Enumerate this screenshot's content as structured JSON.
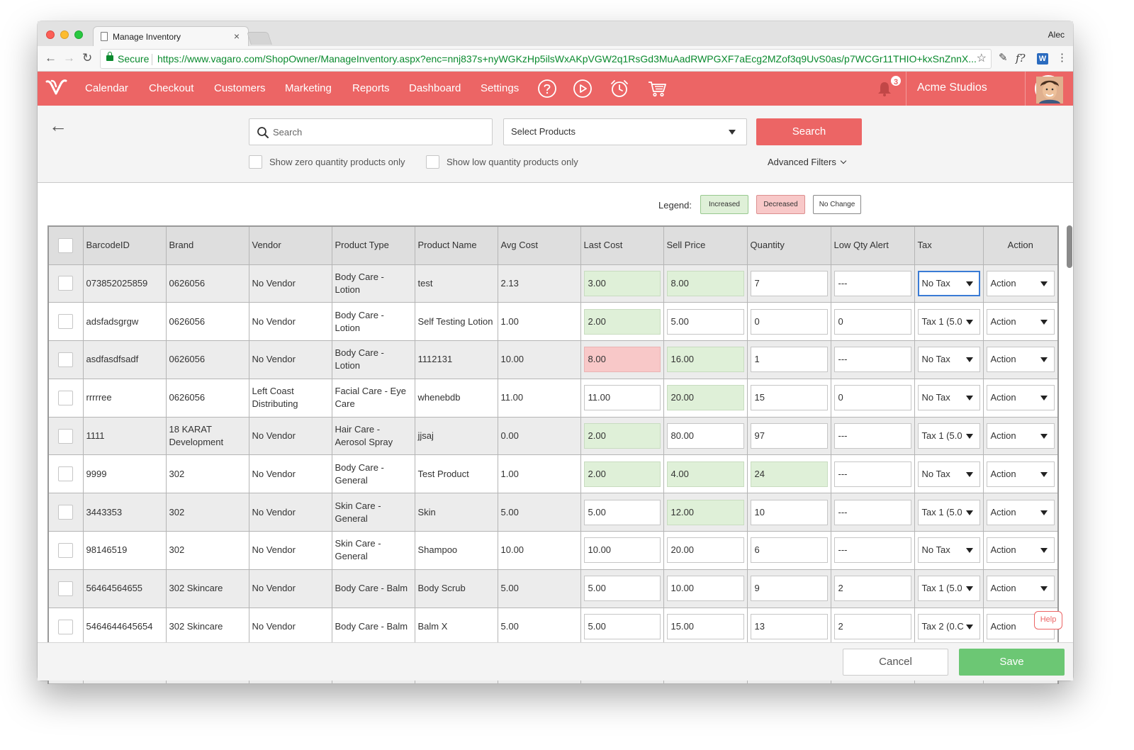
{
  "browser": {
    "tab_title": "Manage Inventory",
    "tab_close": "×",
    "user_name": "Alec",
    "secure_label": "Secure",
    "url": "https://www.vagaro.com/ShopOwner/ManageInventory.aspx?enc=nnj837s+nyWGKzHp5ilsWxAKpVGW2q1RsGd3MuAadRWPGXF7aEcg2MZof3q9UvS0as/p7WCGr11THIO+kxSnZnnX...",
    "ext_f": "f?",
    "ext_w": "W"
  },
  "nav": {
    "items": [
      "Calendar",
      "Checkout",
      "Customers",
      "Marketing",
      "Reports",
      "Dashboard",
      "Settings"
    ],
    "notification_count": "3",
    "business_name": "Acme Studios",
    "icons": [
      "help-icon",
      "play-icon",
      "alarm-clock-icon",
      "cart-icon",
      "bell-icon"
    ]
  },
  "filters": {
    "search_placeholder": "Search",
    "select_products": "Select Products",
    "search_button": "Search",
    "zero_qty_label": "Show zero quantity products only",
    "low_qty_label": "Show low quantity products only",
    "advanced_filters": "Advanced Filters"
  },
  "legend": {
    "label": "Legend:",
    "increased": "Increased",
    "decreased": "Decreased",
    "no_change": "No Change",
    "colors": {
      "increased": "#dff0d8",
      "decreased": "#f8c8c8",
      "no_change": "#ffffff"
    }
  },
  "table": {
    "headers": [
      "BarcodeID",
      "Brand",
      "Vendor",
      "Product Type",
      "Product Name",
      "Avg Cost",
      "Last Cost",
      "Sell Price",
      "Quantity",
      "Low Qty Alert",
      "Tax",
      "Action"
    ],
    "rows": [
      {
        "barcode": "073852025859",
        "brand": "0626056",
        "vendor": "No Vendor",
        "type": "Body Care - Lotion",
        "name": "test",
        "avg": "2.13",
        "last": "3.00",
        "last_s": "inc",
        "sell": "8.00",
        "sell_s": "inc",
        "qty": "7",
        "qty_s": "",
        "low": "---",
        "tax": "No Tax",
        "action": "Action"
      },
      {
        "barcode": "adsfadsgrgw",
        "brand": "0626056",
        "vendor": "No Vendor",
        "type": "Body Care - Lotion",
        "name": "Self Testing Lotion",
        "avg": "1.00",
        "last": "2.00",
        "last_s": "inc",
        "sell": "5.00",
        "sell_s": "",
        "qty": "0",
        "qty_s": "",
        "low": "0",
        "tax": "Tax 1 (5.0",
        "action": "Action"
      },
      {
        "barcode": "asdfasdfsadf",
        "brand": "0626056",
        "vendor": "No Vendor",
        "type": "Body Care - Lotion",
        "name": "1112131",
        "avg": "10.00",
        "last": "8.00",
        "last_s": "dec",
        "sell": "16.00",
        "sell_s": "inc",
        "qty": "1",
        "qty_s": "",
        "low": "---",
        "tax": "No Tax",
        "action": "Action"
      },
      {
        "barcode": "rrrrree",
        "brand": "0626056",
        "vendor": "Left Coast Distributing",
        "type": "Facial Care - Eye Care",
        "name": "whenebdb",
        "avg": "11.00",
        "last": "11.00",
        "last_s": "",
        "sell": "20.00",
        "sell_s": "inc",
        "qty": "15",
        "qty_s": "",
        "low": "0",
        "tax": "No Tax",
        "action": "Action"
      },
      {
        "barcode": "1111",
        "brand": "18 KARAT Development",
        "vendor": "No Vendor",
        "type": "Hair Care - Aerosol Spray",
        "name": "jjsaj",
        "avg": "0.00",
        "last": "2.00",
        "last_s": "inc",
        "sell": "80.00",
        "sell_s": "",
        "qty": "97",
        "qty_s": "",
        "low": "---",
        "tax": "Tax 1 (5.0",
        "action": "Action"
      },
      {
        "barcode": "9999",
        "brand": "302",
        "vendor": "No Vendor",
        "type": "Body Care - General",
        "name": "Test Product",
        "avg": "1.00",
        "last": "2.00",
        "last_s": "inc",
        "sell": "4.00",
        "sell_s": "inc",
        "qty": "24",
        "qty_s": "inc",
        "low": "---",
        "tax": "No Tax",
        "action": "Action"
      },
      {
        "barcode": "3443353",
        "brand": "302",
        "vendor": "No Vendor",
        "type": "Skin Care - General",
        "name": "Skin",
        "avg": "5.00",
        "last": "5.00",
        "last_s": "",
        "sell": "12.00",
        "sell_s": "inc",
        "qty": "10",
        "qty_s": "",
        "low": "---",
        "tax": "Tax 1 (5.0",
        "action": "Action"
      },
      {
        "barcode": "98146519",
        "brand": "302",
        "vendor": "No Vendor",
        "type": "Skin Care - General",
        "name": "Shampoo",
        "avg": "10.00",
        "last": "10.00",
        "last_s": "",
        "sell": "20.00",
        "sell_s": "",
        "qty": "6",
        "qty_s": "",
        "low": "---",
        "tax": "No Tax",
        "action": "Action"
      },
      {
        "barcode": "56464564655",
        "brand": "302 Skincare",
        "vendor": "No Vendor",
        "type": "Body Care - Balm",
        "name": "Body Scrub",
        "avg": "5.00",
        "last": "5.00",
        "last_s": "",
        "sell": "10.00",
        "sell_s": "",
        "qty": "9",
        "qty_s": "",
        "low": "2",
        "tax": "Tax 1 (5.0",
        "action": "Action"
      },
      {
        "barcode": "5464644645654",
        "brand": "302 Skincare",
        "vendor": "No Vendor",
        "type": "Body Care - Balm",
        "name": "Balm X",
        "avg": "5.00",
        "last": "5.00",
        "last_s": "",
        "sell": "15.00",
        "sell_s": "",
        "qty": "13",
        "qty_s": "",
        "low": "2",
        "tax": "Tax 2 (0.C",
        "action": "Action"
      },
      {
        "barcode": "",
        "brand": "",
        "vendor": "",
        "type": "",
        "name": "",
        "avg": "",
        "last": "",
        "last_s": "",
        "sell": "",
        "sell_s": "",
        "qty": "",
        "qty_s": "",
        "low": "",
        "tax": "",
        "action": ""
      }
    ]
  },
  "help_label": "Help",
  "footer": {
    "cancel": "Cancel",
    "save": "Save"
  },
  "colors": {
    "brand": "#ec6565",
    "save": "#6cc774",
    "focus": "#3a7bd5"
  }
}
